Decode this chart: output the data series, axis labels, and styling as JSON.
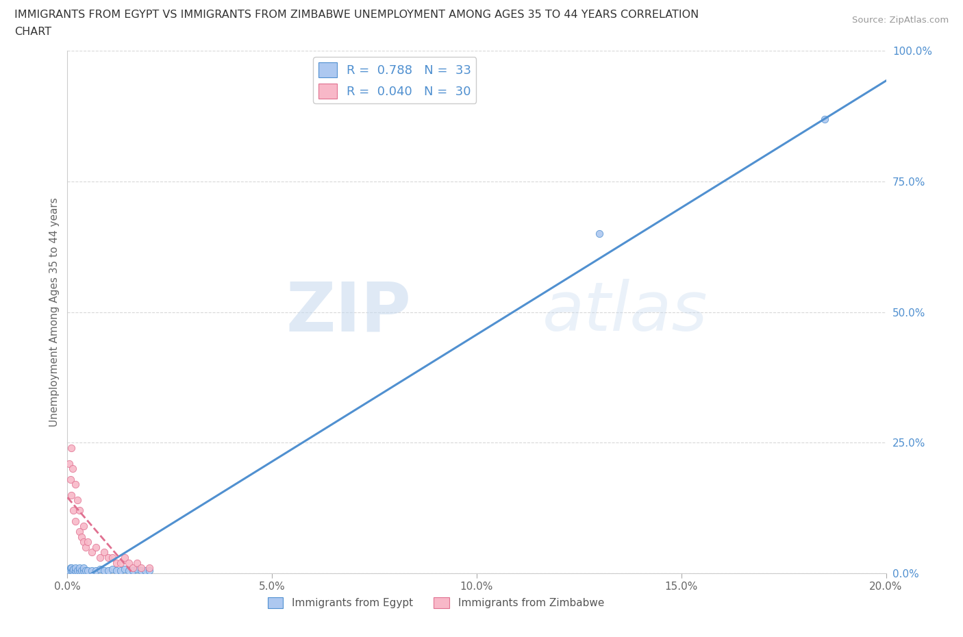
{
  "title_line1": "IMMIGRANTS FROM EGYPT VS IMMIGRANTS FROM ZIMBABWE UNEMPLOYMENT AMONG AGES 35 TO 44 YEARS CORRELATION",
  "title_line2": "CHART",
  "source": "Source: ZipAtlas.com",
  "ylabel": "Unemployment Among Ages 35 to 44 years",
  "xlabel_egypt": "Immigrants from Egypt",
  "xlabel_zimbabwe": "Immigrants from Zimbabwe",
  "egypt_R": 0.788,
  "egypt_N": 33,
  "zimbabwe_R": 0.04,
  "zimbabwe_N": 30,
  "egypt_color": "#adc8f0",
  "egypt_line_color": "#5090d0",
  "zimbabwe_color": "#f8b8c8",
  "zimbabwe_line_color": "#e07090",
  "xlim": [
    0.0,
    0.2
  ],
  "ylim": [
    0.0,
    1.0
  ],
  "yticks": [
    0.0,
    0.25,
    0.5,
    0.75,
    1.0
  ],
  "xticks": [
    0.0,
    0.05,
    0.1,
    0.15,
    0.2
  ],
  "egypt_x": [
    0.0005,
    0.0008,
    0.001,
    0.001,
    0.0012,
    0.0015,
    0.002,
    0.002,
    0.0025,
    0.003,
    0.003,
    0.0035,
    0.004,
    0.004,
    0.0045,
    0.005,
    0.006,
    0.007,
    0.008,
    0.009,
    0.01,
    0.011,
    0.012,
    0.013,
    0.014,
    0.015,
    0.016,
    0.017,
    0.018,
    0.019,
    0.02,
    0.13,
    0.185
  ],
  "egypt_y": [
    0.005,
    0.01,
    0.005,
    0.01,
    0.005,
    0.008,
    0.005,
    0.01,
    0.005,
    0.005,
    0.01,
    0.005,
    0.005,
    0.01,
    0.005,
    0.005,
    0.005,
    0.005,
    0.008,
    0.005,
    0.005,
    0.008,
    0.005,
    0.005,
    0.008,
    0.005,
    0.005,
    0.008,
    0.005,
    0.005,
    0.005,
    0.65,
    0.87
  ],
  "zimbabwe_x": [
    0.0005,
    0.0008,
    0.001,
    0.001,
    0.0012,
    0.0015,
    0.002,
    0.002,
    0.0025,
    0.003,
    0.003,
    0.0035,
    0.004,
    0.004,
    0.0045,
    0.005,
    0.006,
    0.007,
    0.008,
    0.009,
    0.01,
    0.011,
    0.012,
    0.013,
    0.014,
    0.015,
    0.016,
    0.017,
    0.018,
    0.02
  ],
  "zimbabwe_y": [
    0.21,
    0.18,
    0.24,
    0.15,
    0.2,
    0.12,
    0.17,
    0.1,
    0.14,
    0.08,
    0.12,
    0.07,
    0.06,
    0.09,
    0.05,
    0.06,
    0.04,
    0.05,
    0.03,
    0.04,
    0.03,
    0.03,
    0.02,
    0.02,
    0.03,
    0.02,
    0.01,
    0.02,
    0.01,
    0.01
  ],
  "watermark_zip": "ZIP",
  "watermark_atlas": "atlas",
  "background_color": "#ffffff",
  "grid_color": "#d8d8d8"
}
